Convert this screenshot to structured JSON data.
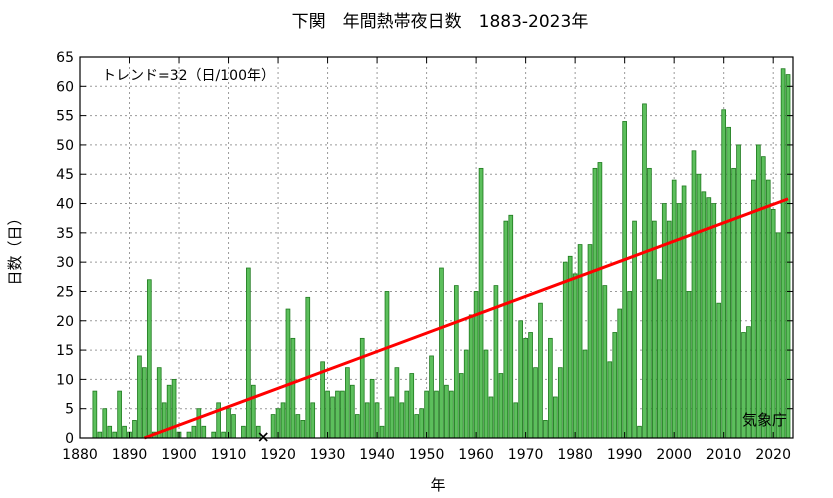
{
  "chart_data": {
    "type": "bar",
    "title": "下関　年間熱帯夜日数　1883-2023年",
    "xlabel": "年",
    "ylabel": "日数（日）",
    "trend_label": "トレンド=32（日/100年）",
    "source_label": "気象庁",
    "xlim": [
      1880,
      2024
    ],
    "ylim": [
      0,
      65
    ],
    "x_ticks": [
      1880,
      1890,
      1900,
      1910,
      1920,
      1930,
      1940,
      1950,
      1960,
      1970,
      1980,
      1990,
      2000,
      2010,
      2020
    ],
    "y_ticks": [
      0,
      5,
      10,
      15,
      20,
      25,
      30,
      35,
      40,
      45,
      50,
      55,
      60,
      65
    ],
    "grid": true,
    "colors": {
      "bar_fill": "#5cbf5c",
      "bar_stroke": "#1e7a1e",
      "trend": "#ff0000",
      "missing_marker": "#000000"
    },
    "trend_line": {
      "x": [
        1893,
        2023
      ],
      "y": [
        0,
        40.8
      ]
    },
    "missing_years": [
      1917
    ],
    "years": [
      1883,
      1884,
      1885,
      1886,
      1887,
      1888,
      1889,
      1890,
      1891,
      1892,
      1893,
      1894,
      1895,
      1896,
      1897,
      1898,
      1899,
      1900,
      1901,
      1902,
      1903,
      1904,
      1905,
      1906,
      1907,
      1908,
      1909,
      1910,
      1911,
      1912,
      1913,
      1914,
      1915,
      1916,
      1917,
      1918,
      1919,
      1920,
      1921,
      1922,
      1923,
      1924,
      1925,
      1926,
      1927,
      1928,
      1929,
      1930,
      1931,
      1932,
      1933,
      1934,
      1935,
      1936,
      1937,
      1938,
      1939,
      1940,
      1941,
      1942,
      1943,
      1944,
      1945,
      1946,
      1947,
      1948,
      1949,
      1950,
      1951,
      1952,
      1953,
      1954,
      1955,
      1956,
      1957,
      1958,
      1959,
      1960,
      1961,
      1962,
      1963,
      1964,
      1965,
      1966,
      1967,
      1968,
      1969,
      1970,
      1971,
      1972,
      1973,
      1974,
      1975,
      1976,
      1977,
      1978,
      1979,
      1980,
      1981,
      1982,
      1983,
      1984,
      1985,
      1986,
      1987,
      1988,
      1989,
      1990,
      1991,
      1992,
      1993,
      1994,
      1995,
      1996,
      1997,
      1998,
      1999,
      2000,
      2001,
      2002,
      2003,
      2004,
      2005,
      2006,
      2007,
      2008,
      2009,
      2010,
      2011,
      2012,
      2013,
      2014,
      2015,
      2016,
      2017,
      2018,
      2019,
      2020,
      2021,
      2022,
      2023
    ],
    "values": [
      8,
      1,
      5,
      2,
      1,
      8,
      2,
      1,
      3,
      14,
      12,
      27,
      1,
      12,
      6,
      9,
      10,
      1,
      0,
      1,
      2,
      5,
      2,
      0,
      1,
      6,
      1,
      5,
      4,
      0,
      2,
      29,
      9,
      2,
      null,
      0,
      4,
      5,
      6,
      22,
      17,
      4,
      3,
      24,
      6,
      0,
      13,
      8,
      7,
      8,
      8,
      12,
      9,
      4,
      17,
      6,
      10,
      6,
      2,
      25,
      7,
      12,
      6,
      8,
      11,
      4,
      5,
      8,
      14,
      8,
      29,
      9,
      8,
      26,
      11,
      15,
      21,
      25,
      46,
      15,
      7,
      26,
      11,
      37,
      38,
      6,
      20,
      17,
      18,
      12,
      23,
      3,
      17,
      7,
      12,
      30,
      31,
      28,
      33,
      15,
      33,
      46,
      47,
      26,
      13,
      18,
      22,
      54,
      25,
      37,
      2,
      57,
      46,
      37,
      27,
      40,
      37,
      44,
      40,
      43,
      25,
      49,
      45,
      42,
      41,
      40,
      23,
      56,
      53,
      46,
      50,
      18,
      19,
      44,
      50,
      48,
      44,
      39,
      35,
      63,
      62
    ]
  }
}
